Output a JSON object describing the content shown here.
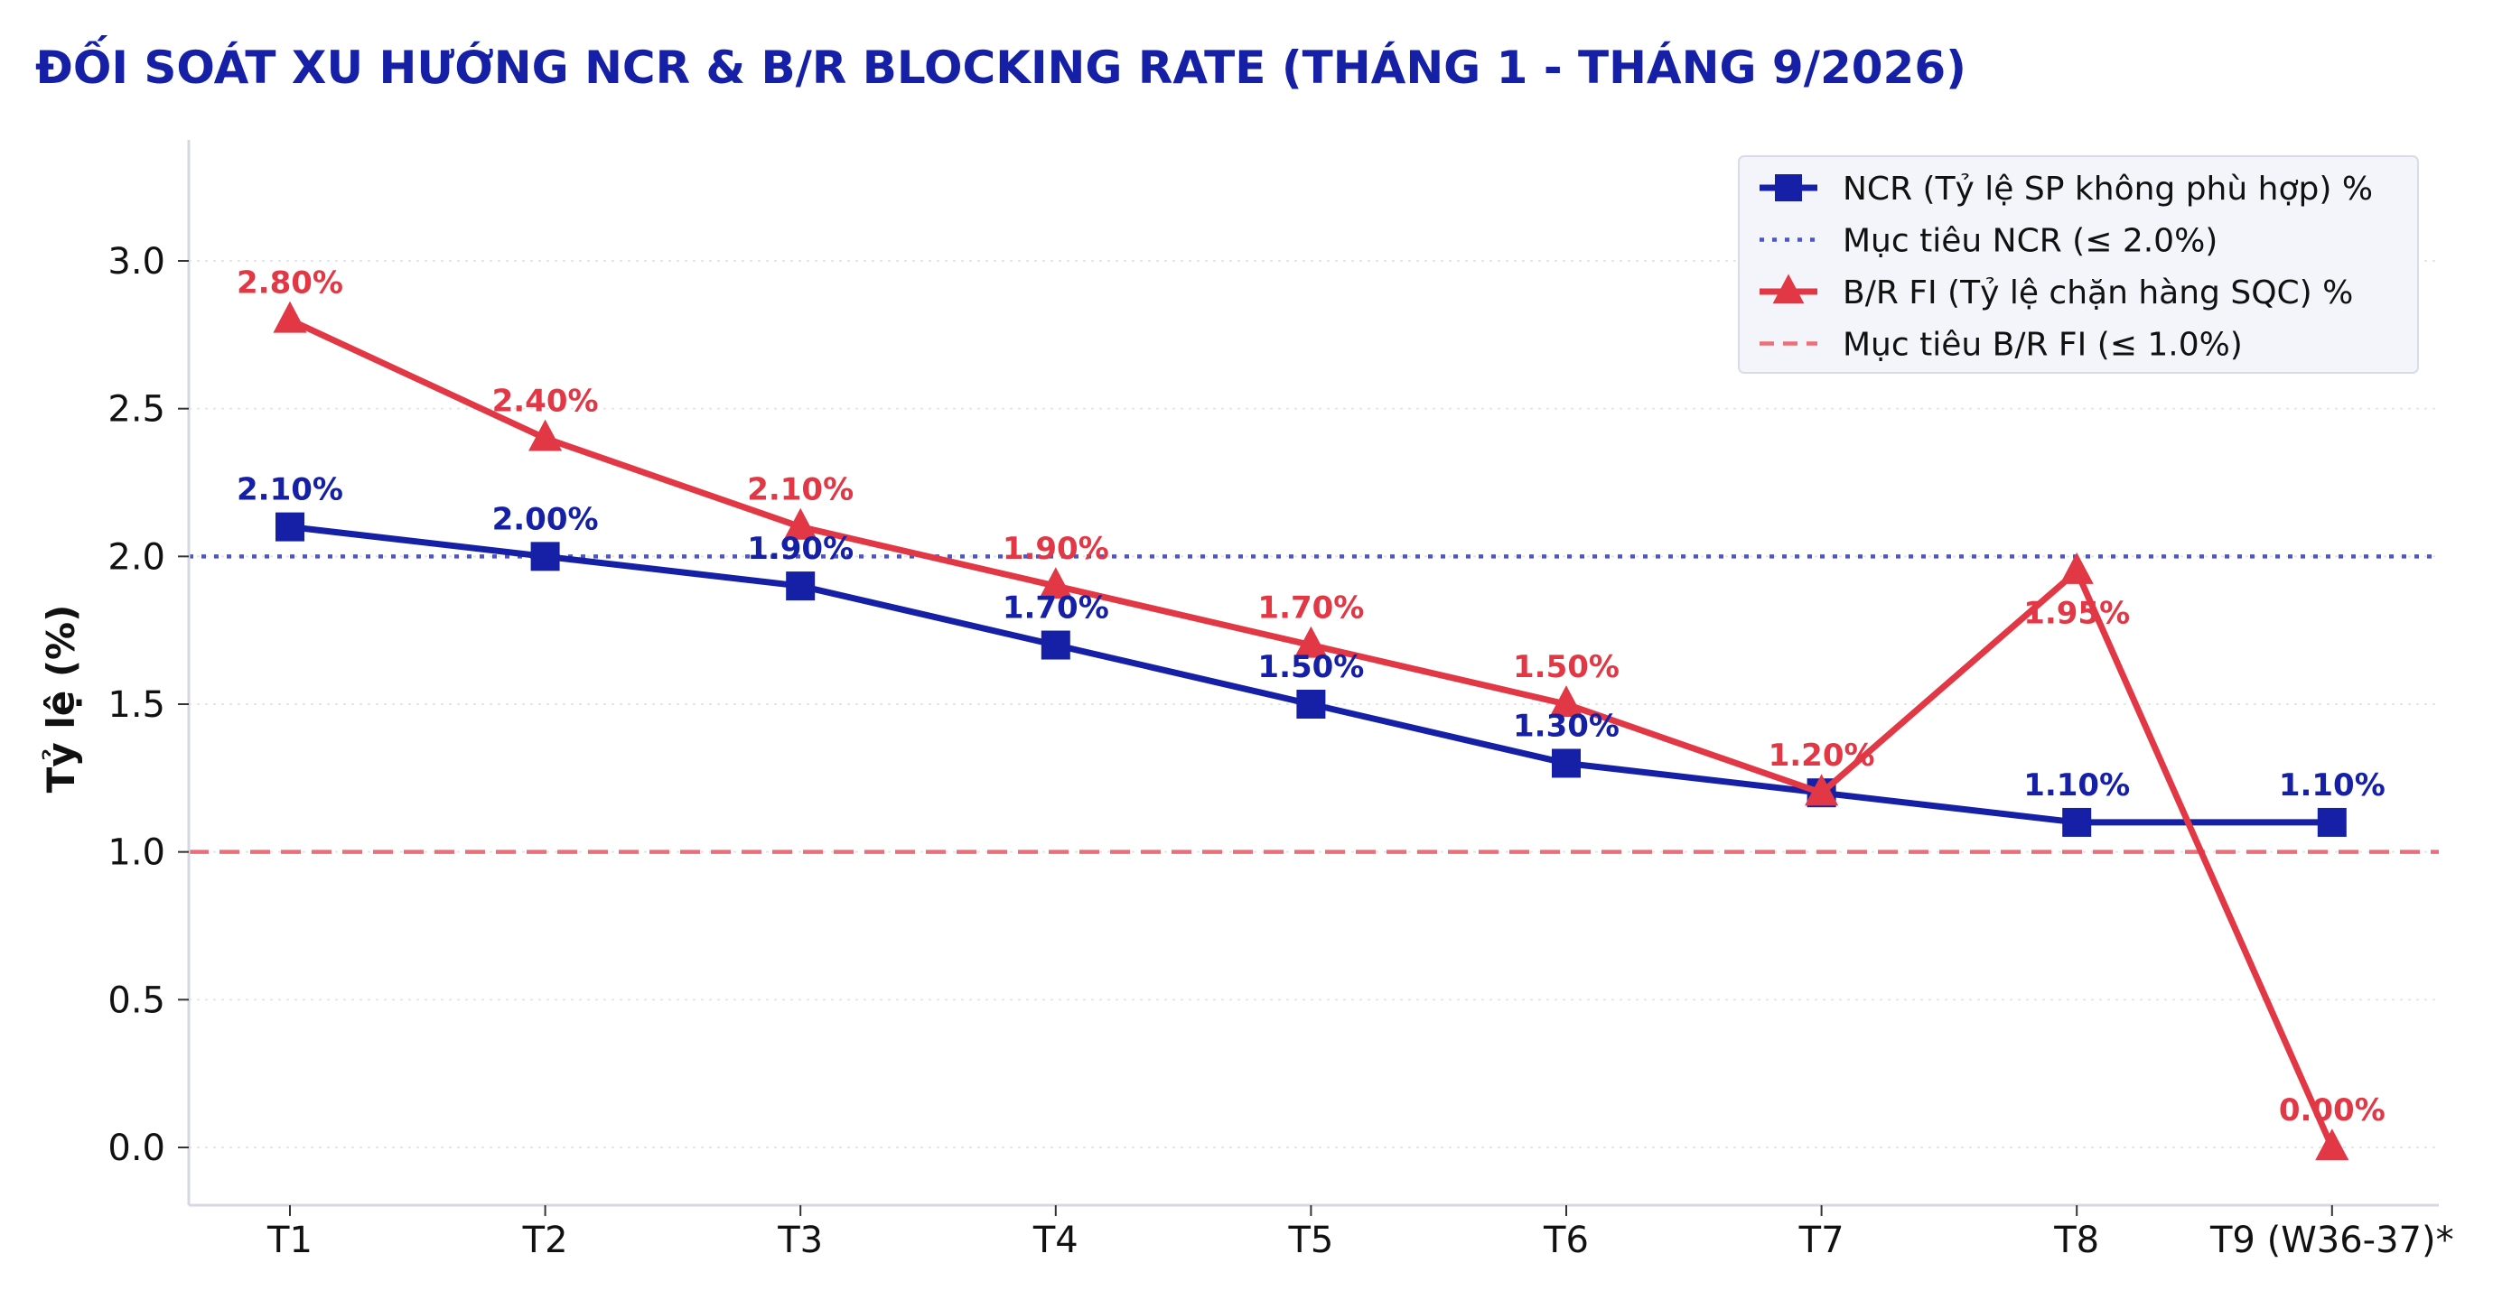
{
  "chart_data": {
    "type": "line",
    "title": "ĐỐI SOÁT XU HƯỚNG NCR & B/R BLOCKING RATE (THÁNG 1 - THÁNG 9/2026)",
    "ylabel": "Tỷ lệ (%)",
    "xlabel": "",
    "categories": [
      "T1",
      "T2",
      "T3",
      "T4",
      "T5",
      "T6",
      "T7",
      "T8",
      "T9 (W36-37)*"
    ],
    "ylim": [
      -0.2,
      3.4
    ],
    "yticks": [
      0.0,
      0.5,
      1.0,
      1.5,
      2.0,
      2.5,
      3.0
    ],
    "ytick_labels": [
      "0.0",
      "0.5",
      "1.0",
      "1.5",
      "2.0",
      "2.5",
      "3.0"
    ],
    "grid": "horizontal dotted",
    "legend_position": "top-right",
    "series": [
      {
        "name": "NCR (Tỷ lệ SP không phù hợp) %",
        "values": [
          2.1,
          2.0,
          1.9,
          1.7,
          1.5,
          1.3,
          1.2,
          1.1,
          1.1
        ],
        "labels": [
          "2.10%",
          "2.00%",
          "1.90%",
          "1.70%",
          "1.50%",
          "1.30%",
          "",
          "1.10%",
          "1.10%"
        ],
        "color": "#1520A6",
        "marker": "square",
        "label_side": [
          "above",
          "above",
          "above",
          "above",
          "above",
          "above",
          "above",
          "above",
          "above"
        ]
      },
      {
        "name": "B/R FI (Tỷ lệ chặn hàng SQC) %",
        "values": [
          2.8,
          2.4,
          2.1,
          1.9,
          1.7,
          1.5,
          1.2,
          1.95,
          0.0
        ],
        "labels": [
          "2.80%",
          "2.40%",
          "2.10%",
          "1.90%",
          "1.70%",
          "1.50%",
          "1.20%",
          "1.95%",
          "0.00%"
        ],
        "color": "#E23744",
        "marker": "triangle",
        "label_side": [
          "above",
          "above",
          "above",
          "above",
          "above",
          "above",
          "above",
          "below",
          "above"
        ]
      }
    ],
    "reference_lines": [
      {
        "name": "Mục tiêu NCR (≤ 2.0%)",
        "y": 2.0,
        "color": "#4A55CC",
        "style": "dotted"
      },
      {
        "name": "Mục tiêu B/R FI (≤ 1.0%)",
        "y": 1.0,
        "color": "#EC6E78",
        "style": "dashed"
      }
    ]
  }
}
